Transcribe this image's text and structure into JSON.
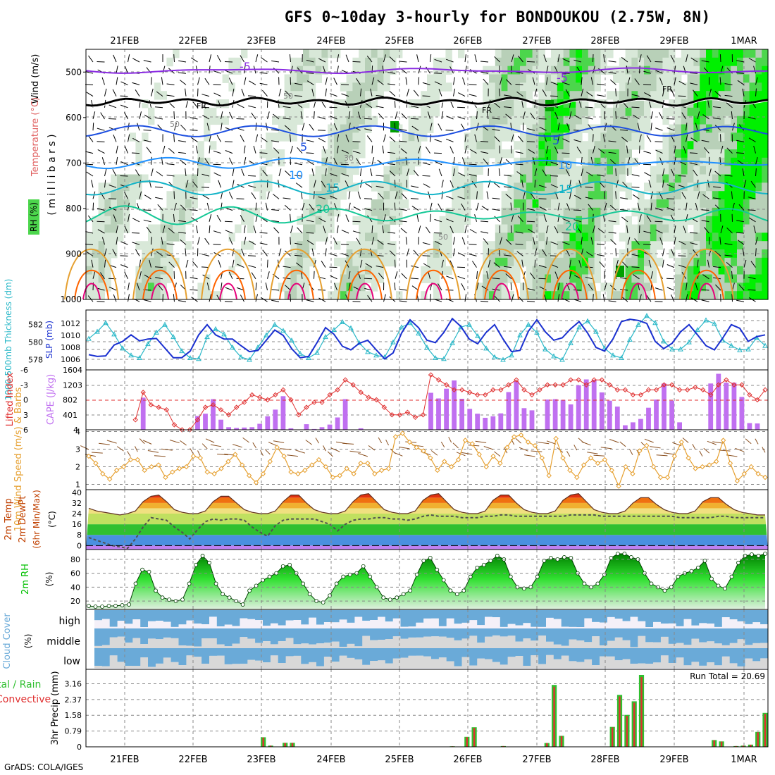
{
  "title": "GFS 0~10day 3-hourly for BONDOUKOU (2.75W, 8N)",
  "credit": "GrADS: COLA/IGES",
  "run_total_label": "Run Total = 20.69",
  "dates": [
    "21FEB",
    "22FEB",
    "23FEB",
    "24FEB",
    "25FEB",
    "26FEB",
    "27FEB",
    "28FEB",
    "29FEB",
    "1MAR"
  ],
  "colors": {
    "rh_light": "#d8e8d8",
    "rh_mid": "#b8d0b8",
    "rh_green": "#4cd64c",
    "rh_bright": "#00f000",
    "rh_dark": "#00a000",
    "temp_minus5": "#8a2be2",
    "temp_fr": "#000000",
    "temp_5": "#1e50e0",
    "temp_10": "#1e90ff",
    "temp_15": "#14b4c8",
    "temp_20": "#14c896",
    "temp_25": "#e6a030",
    "temp_30": "#ff6400",
    "temp_35": "#e6007a",
    "thickness": "#2ab8c8",
    "slp": "#1a30d0",
    "cape": "#c070f0",
    "lifted_index": "#e03030",
    "wind10m": "#e6a030",
    "barbs10m": "#8a5020",
    "cloud": "#6aaad8",
    "cloud_gap": "#d8d8d8",
    "rain_total": "#30c030",
    "rain_conv": "#e03030",
    "rh2m": "#00c000"
  },
  "chart_data": [
    {
      "panel": "upper-air",
      "type": "heatmap",
      "ylabel_parts": [
        "RH (%)",
        "Temperature (°C)",
        "Wind (m/s)"
      ],
      "ylabel_center": "( m i l l i b a r s )",
      "y_ticks": [
        500,
        600,
        700,
        800,
        900,
        1000
      ],
      "ylim": [
        1000,
        450
      ],
      "temperature_isotherm_labels": [
        "-5",
        "FR",
        "5",
        "10",
        "15",
        "20"
      ],
      "rh_contour_labels": [
        "50",
        "30"
      ],
      "rh_shading": "green shading above 70%, bright green above 90%, grey shading 30-70%"
    },
    {
      "panel": "thickness-slp",
      "type": "line",
      "ylabel_left": "1000-500mb Thickness (dm)",
      "ylabel_right": "SLP (mb)",
      "thickness_ticks": [
        578,
        580,
        582
      ],
      "slp_ticks": [
        1006,
        1008,
        1010,
        1012
      ],
      "thickness_ylim": [
        577,
        583.5
      ],
      "slp_ylim": [
        1004.5,
        1014
      ],
      "series": [
        {
          "name": "1000-500mb Thickness (dm)",
          "values": [
            580.4,
            581.2,
            582.2,
            580.9,
            579.3,
            578.5,
            578.2,
            579.8,
            581.1,
            582.0,
            580.6,
            579.0,
            578.2,
            578.1,
            580.6,
            581.5,
            580.9,
            579.4,
            578.3,
            578.0,
            579.4,
            580.8,
            582.0,
            581.3,
            580.2,
            578.7,
            578.2,
            578.8,
            580.6,
            581.4,
            582.3,
            581.6,
            579.9,
            578.9,
            578.5,
            578.3,
            580.0,
            581.7,
            582.2,
            581.0,
            579.4,
            578.2,
            578.1,
            579.9,
            581.7,
            582.0,
            580.7,
            579.3,
            578.3,
            578.0,
            578.5,
            580.8,
            582.0,
            581.1,
            579.2,
            578.4,
            578.0,
            579.9,
            581.7,
            582.4,
            581.2,
            579.3,
            578.5,
            578.2,
            580.3,
            582.0,
            583.0,
            582.2,
            580.1,
            579.2,
            579.2,
            580.0,
            581.4,
            582.5,
            582.1,
            580.2,
            579.6,
            579.1,
            579.2,
            580.5,
            579.6
          ]
        },
        {
          "name": "SLP (mb)",
          "values": [
            1006.8,
            1006.5,
            1006.6,
            1008.4,
            1009.0,
            1010.1,
            1009.1,
            1009.4,
            1009.5,
            1007.9,
            1006.3,
            1006.3,
            1007.4,
            1010.1,
            1011.8,
            1010.1,
            1009.4,
            1009.4,
            1008.3,
            1007.3,
            1007.5,
            1009.2,
            1010.9,
            1010.0,
            1007.8,
            1006.3,
            1006.5,
            1008.8,
            1011.3,
            1010.2,
            1008.2,
            1007.6,
            1008.7,
            1009.2,
            1007.6,
            1006.1,
            1007.1,
            1010.4,
            1012.6,
            1011.3,
            1009.2,
            1008.8,
            1010.5,
            1012.8,
            1011.5,
            1009.4,
            1008.6,
            1010.5,
            1011.8,
            1009.4,
            1007.3,
            1007.5,
            1010.7,
            1012.6,
            1010.6,
            1009.2,
            1009.6,
            1011.1,
            1012.3,
            1010.4,
            1008.0,
            1007.4,
            1009.4,
            1012.3,
            1012.7,
            1012.5,
            1012.0,
            1009.0,
            1007.8,
            1008.7,
            1010.6,
            1011.8,
            1010.1,
            1008.3,
            1007.6,
            1009.6,
            1011.8,
            1011.2,
            1009.0,
            1009.8,
            1010.1
          ]
        }
      ]
    },
    {
      "panel": "cape-li",
      "type": "bar",
      "ylabel_left": "Lifted Index",
      "ylabel_right": "CAPE (J/kg)",
      "li_ticks": [
        "-6",
        "-3",
        "0",
        "3",
        "6"
      ],
      "cape_ticks": [
        401,
        802,
        1203,
        1604
      ],
      "cape_ylim": [
        0,
        1604
      ],
      "li_ylim": [
        6,
        -6
      ],
      "series": [
        {
          "name": "CAPE (J/kg)",
          "values": [
            0,
            0,
            0,
            0,
            0,
            0,
            0,
            860,
            0,
            0,
            0,
            0,
            0,
            0,
            370,
            430,
            820,
            270,
            70,
            50,
            60,
            70,
            160,
            360,
            540,
            900,
            40,
            0,
            150,
            20,
            70,
            140,
            330,
            820,
            0,
            40,
            0,
            0,
            0,
            0,
            0,
            0,
            0,
            0,
            990,
            840,
            1100,
            1320,
            830,
            560,
            430,
            320,
            360,
            440,
            1010,
            1300,
            580,
            520,
            0,
            810,
            820,
            800,
            680,
            1190,
            1350,
            1340,
            1000,
            780,
            620,
            120,
            200,
            290,
            590,
            810,
            1240,
            780,
            200,
            0,
            0,
            0,
            1240,
            1500,
            1260,
            1260,
            880,
            180,
            170,
            0
          ]
        },
        {
          "name": "Lifted Index",
          "values": [
            null,
            null,
            null,
            null,
            null,
            null,
            4,
            -1.5,
            1,
            1.5,
            2,
            5,
            6,
            6,
            4,
            1.5,
            1,
            2,
            3,
            1.5,
            0.5,
            -1,
            -0.5,
            0,
            -1,
            -2,
            0,
            3,
            1.5,
            0.5,
            0.5,
            -1,
            -2,
            -4,
            -3,
            -1.5,
            -0.5,
            0,
            1.5,
            3,
            3,
            2.5,
            3.5,
            3,
            -5,
            -4,
            -3,
            -2,
            -2,
            -1.5,
            -1,
            -1,
            -2,
            -2,
            -3,
            -4,
            -2,
            -1,
            -2,
            -3,
            -3,
            -3,
            -4,
            -4,
            -3,
            -4,
            -4,
            -3,
            -2,
            -2,
            -1,
            -1,
            -2,
            -2,
            -3,
            -3,
            -2,
            -2,
            -2.5,
            -2,
            -1,
            -3,
            -4,
            -3,
            -3,
            -1,
            0,
            -2
          ]
        }
      ]
    },
    {
      "panel": "wind10m",
      "type": "line",
      "ylabel": "10m Wind Speed (m/s) & Barbs",
      "y_ticks": [
        1,
        2,
        3,
        4
      ],
      "ylim": [
        0.7,
        4.1
      ],
      "series": [
        {
          "name": "10m Wind Speed",
          "values": [
            2.6,
            2.2,
            1.6,
            1.3,
            1.8,
            2.0,
            2.4,
            2.4,
            1.8,
            2.0,
            2.1,
            1.4,
            1.7,
            1.9,
            2.0,
            2.6,
            2.5,
            1.7,
            1.6,
            1.9,
            2.3,
            2.7,
            2.1,
            1.5,
            1.1,
            1.6,
            2.3,
            3.1,
            2.6,
            1.7,
            1.6,
            1.8,
            2.1,
            2.4,
            2.0,
            1.4,
            1.5,
            1.9,
            1.6,
            2.2,
            2.2,
            1.6,
            1.8,
            1.9,
            3.7,
            3.9,
            3.4,
            3.1,
            2.9,
            2.5,
            1.8,
            2.3,
            2.0,
            2.4,
            3.5,
            3.3,
            2.7,
            2.0,
            2.6,
            2.2,
            3.1,
            3.7,
            3.8,
            3.4,
            3.2,
            2.5,
            1.5,
            3.6,
            2.5,
            1.8,
            1.4,
            2.1,
            2.5,
            2.2,
            2.4,
            1.8,
            0.9,
            2.0,
            1.6,
            2.9,
            3.2,
            2.0,
            1.4,
            1.4,
            2.6,
            3.4,
            2.5,
            1.9,
            2.0,
            2.1,
            2.3,
            3.5,
            2.2,
            1.2,
            1.6,
            2.0,
            1.6,
            1.4
          ]
        }
      ]
    },
    {
      "panel": "temp2m",
      "type": "area",
      "ylabel": "2m Temp 2m DewPt (6hr Min/Max) (°C)",
      "y_ticks": [
        0,
        8,
        16,
        24,
        32,
        40
      ],
      "ylim": [
        -3,
        42
      ],
      "series": [
        {
          "name": "2m Temp",
          "values": [
            28,
            26,
            25,
            24,
            23,
            24,
            26,
            33,
            37,
            38,
            33,
            27,
            25,
            24,
            24,
            26,
            33,
            37,
            37,
            32,
            27,
            25,
            24,
            24,
            26,
            33,
            38,
            38,
            32,
            27,
            25,
            24,
            24,
            26,
            33,
            38,
            39,
            33,
            27,
            25,
            24,
            24,
            26,
            34,
            38,
            39,
            33,
            27,
            25,
            24,
            24,
            26,
            34,
            38,
            38,
            32,
            27,
            25,
            24,
            24,
            26,
            34,
            38,
            39,
            33,
            27,
            25,
            24,
            24,
            26,
            32,
            36,
            36,
            31,
            27,
            25,
            24,
            24,
            26,
            33,
            36,
            36,
            31,
            27,
            25,
            24,
            23,
            23
          ]
        },
        {
          "name": "2m DewPt",
          "values": [
            6,
            4,
            2,
            0,
            -1,
            -2,
            5,
            14,
            21,
            20,
            19,
            14,
            10,
            5,
            12,
            18,
            20,
            19,
            20,
            20,
            19,
            14,
            10,
            7,
            15,
            19,
            20,
            20,
            20,
            20,
            18,
            16,
            11,
            16,
            19,
            20,
            20,
            21,
            21,
            20,
            20,
            19,
            20,
            22,
            23,
            22,
            22,
            22,
            21,
            21,
            21,
            22,
            22,
            23,
            23,
            22,
            22,
            22,
            22,
            22,
            22,
            22,
            23,
            23,
            23,
            23,
            22,
            22,
            22,
            22,
            22,
            22,
            22,
            22,
            22,
            22,
            21,
            21,
            21,
            21,
            21,
            22,
            22,
            21,
            21,
            21,
            21,
            21
          ]
        }
      ]
    },
    {
      "panel": "rh2m",
      "type": "area",
      "ylabel": "2m RH (%)",
      "y_ticks": [
        20,
        40,
        60,
        80
      ],
      "ylim": [
        10,
        90
      ],
      "series": [
        {
          "name": "2m RH",
          "values": [
            13,
            12,
            12,
            13,
            13,
            14,
            15,
            45,
            65,
            62,
            35,
            25,
            22,
            20,
            22,
            45,
            72,
            85,
            75,
            45,
            30,
            25,
            20,
            15,
            35,
            42,
            50,
            55,
            60,
            70,
            72,
            60,
            45,
            30,
            20,
            18,
            28,
            45,
            55,
            58,
            60,
            70,
            55,
            40,
            25,
            22,
            25,
            30,
            35,
            58,
            78,
            82,
            65,
            50,
            35,
            30,
            35,
            55,
            68,
            72,
            78,
            85,
            80,
            55,
            40,
            38,
            40,
            55,
            78,
            82,
            80,
            83,
            82,
            60,
            45,
            40,
            45,
            58,
            82,
            88,
            88,
            83,
            80,
            60,
            45,
            40,
            35,
            40,
            55,
            60,
            63,
            68,
            78,
            52,
            42,
            38,
            55,
            75,
            85,
            87,
            85,
            88
          ]
        }
      ]
    },
    {
      "panel": "cloud",
      "type": "heatmap",
      "ylabel": "Cloud Cover (%)",
      "rows": [
        "high",
        "middle",
        "low"
      ]
    },
    {
      "panel": "precip",
      "type": "bar",
      "ylabel_left": "Total / Rain Convective",
      "ylabel": "3hr Precip (mm)",
      "y_ticks": [
        0,
        0.79,
        1.58,
        2.37,
        3.16
      ],
      "ylim": [
        0,
        3.6
      ],
      "series": [
        {
          "name": "Total",
          "values": [
            0,
            0,
            0,
            0,
            0,
            0,
            0,
            0,
            0,
            0,
            0,
            0,
            0,
            0,
            0,
            0,
            0,
            0,
            0,
            0,
            0,
            0,
            0,
            0,
            0.48,
            0.06,
            0,
            0.2,
            0.2,
            0,
            0,
            0,
            0,
            0,
            0,
            0,
            0,
            0,
            0,
            0,
            0,
            0,
            0,
            0,
            0,
            0,
            0,
            0,
            0,
            0,
            0.03,
            0,
            0.5,
            0.98,
            0,
            0,
            0,
            0.04,
            0,
            0,
            0,
            0,
            0,
            0.19,
            3.1,
            0.55,
            0,
            0,
            0,
            0,
            0,
            0,
            1.0,
            2.6,
            1.6,
            2.28,
            3.6,
            0,
            0,
            0,
            0,
            0,
            0,
            0,
            0,
            0,
            0.34,
            0.27,
            0,
            0.04,
            0.06,
            0.11,
            0.75,
            1.7
          ]
        }
      ]
    }
  ]
}
